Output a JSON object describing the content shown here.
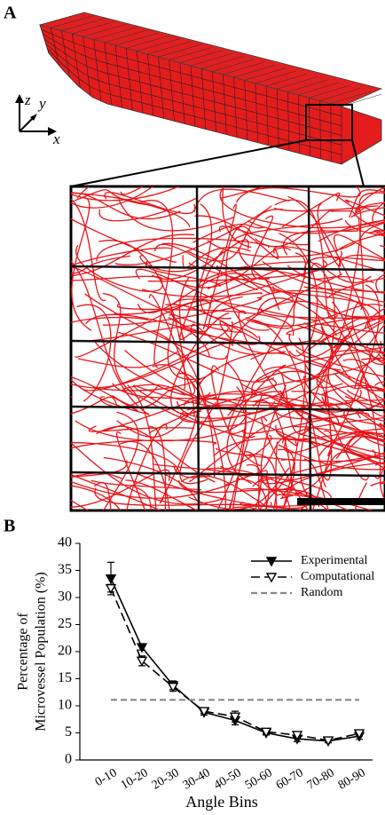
{
  "panel_a": {
    "label": "A",
    "axes": {
      "z": "z",
      "y": "y",
      "x": "x"
    }
  },
  "chart_data": {
    "type": "line",
    "panel_label": "B",
    "ylabel": [
      "Percentage of",
      "Microvessel Population (%)"
    ],
    "xlabel": "Angle Bins",
    "categories": [
      "0-10",
      "10-20",
      "20-30",
      "30-40",
      "40-50",
      "50-60",
      "60-70",
      "70-80",
      "80-90"
    ],
    "series": [
      {
        "name": "Experimental",
        "color": "#000000",
        "style": "solid",
        "marker": "filled-triangle",
        "values": [
          33.5,
          20.8,
          13.8,
          8.8,
          7.3,
          5.0,
          3.9,
          3.5,
          4.4
        ],
        "errors": [
          3.0,
          0.5,
          0.8,
          0.5,
          0.8,
          0.4,
          0.5,
          0.3,
          0.6
        ]
      },
      {
        "name": "Computational",
        "color": "#000000",
        "style": "dashed",
        "marker": "open-triangle",
        "values": [
          31.7,
          18.3,
          13.5,
          9.0,
          8.0,
          5.2,
          4.6,
          3.6,
          4.9
        ],
        "errors": [
          0.7,
          0.9,
          0.8,
          0.4,
          1.0,
          0.4,
          0.4,
          0.4,
          0.5
        ]
      },
      {
        "name": "Random",
        "color": "#888888",
        "style": "dotted-dash",
        "marker": "none",
        "values": [
          11.1,
          11.1,
          11.1,
          11.1,
          11.1,
          11.1,
          11.1,
          11.1,
          11.1
        ]
      }
    ],
    "ylim": [
      0,
      40
    ],
    "yticks": [
      0,
      5,
      10,
      15,
      20,
      25,
      30,
      35,
      40
    ],
    "legend": "top-right"
  }
}
